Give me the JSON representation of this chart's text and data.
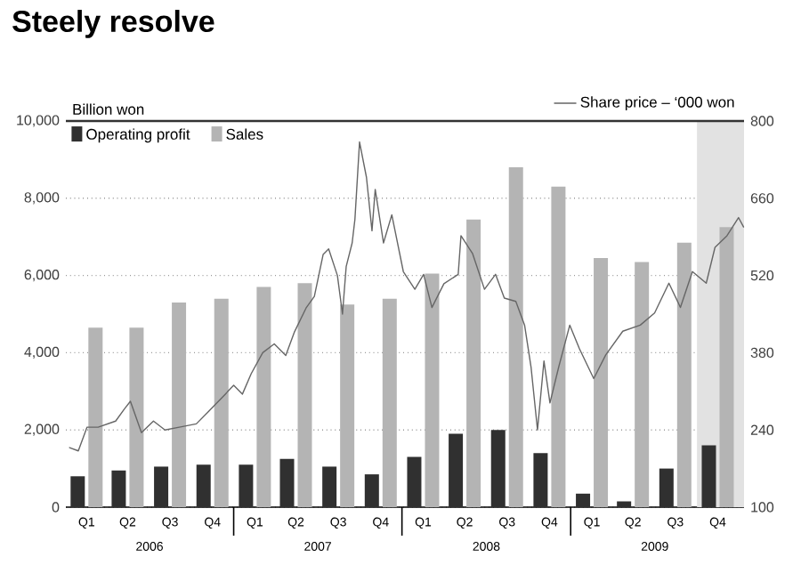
{
  "chart_data": {
    "type": "bar",
    "title": "Steely resolve",
    "ylabel": "Billion won",
    "x": [
      "2006-02-15",
      "2006-05-15",
      "2006-08-15",
      "2006-11-15",
      "2007-02-15",
      "2007-05-15",
      "2007-08-15",
      "2007-11-15",
      "2008-02-15",
      "2008-05-15",
      "2008-08-15",
      "2008-11-15",
      "2009-02-15",
      "2009-05-15",
      "2009-08-15",
      "2009-11-15"
    ],
    "series": [
      {
        "name": "Operating profit",
        "color": "#303030",
        "values": [
          800,
          950,
          1050,
          1100,
          1100,
          1250,
          1050,
          850,
          1300,
          1900,
          2000,
          1400,
          350,
          150,
          1000,
          1600
        ]
      },
      {
        "name": "Sales",
        "color": "#b4b4b4",
        "values": [
          4650,
          4650,
          5300,
          5400,
          5700,
          5800,
          5250,
          5400,
          6050,
          7450,
          8800,
          8300,
          6450,
          6350,
          6850,
          7250
        ]
      },
      {
        "name": "Share price – ‘000 won",
        "type": "line",
        "axis": "y2",
        "color": "#666666",
        "x": [
          "2006-01-09",
          "2006-01-28",
          "2006-02-16",
          "2006-03-12",
          "2006-04-19",
          "2006-05-08",
          "2006-05-21",
          "2006-06-14",
          "2006-07-10",
          "2006-08-04",
          "2006-09-04",
          "2006-10-11",
          "2006-11-05",
          "2006-12-13",
          "2006-12-31",
          "2007-01-19",
          "2007-02-07",
          "2007-03-04",
          "2007-03-29",
          "2007-04-23",
          "2007-05-12",
          "2007-06-06",
          "2007-06-24",
          "2007-07-13",
          "2007-07-25",
          "2007-08-13",
          "2007-08-24",
          "2007-09-01",
          "2007-09-14",
          "2007-09-20",
          "2007-09-30",
          "2007-10-15",
          "2007-10-27",
          "2007-11-03",
          "2007-11-21",
          "2007-12-09",
          "2008-01-03",
          "2008-01-28",
          "2008-02-16",
          "2008-03-05",
          "2008-03-31",
          "2008-05-01",
          "2008-05-07",
          "2008-06-01",
          "2008-06-27",
          "2008-07-21",
          "2008-08-09",
          "2008-09-03",
          "2008-09-22",
          "2008-10-06",
          "2008-10-20",
          "2008-11-03",
          "2008-11-16",
          "2008-12-05",
          "2008-12-29",
          "2009-01-19",
          "2009-02-19",
          "2009-03-17",
          "2009-04-23",
          "2009-05-31",
          "2009-07-01",
          "2009-08-01",
          "2009-08-26",
          "2009-09-21",
          "2009-10-21",
          "2009-11-09",
          "2009-12-05",
          "2009-12-30",
          "2010-01-10"
        ],
        "values": [
          208,
          202,
          245,
          245,
          256,
          278,
          292,
          235,
          256,
          240,
          245,
          251,
          272,
          305,
          321,
          305,
          342,
          380,
          396,
          375,
          418,
          461,
          482,
          558,
          568,
          520,
          450,
          536,
          579,
          622,
          762,
          698,
          601,
          676,
          579,
          630,
          527,
          495,
          522,
          462,
          505,
          522,
          592,
          560,
          495,
          522,
          479,
          473,
          430,
          354,
          240,
          365,
          289,
          354,
          430,
          387,
          333,
          376,
          419,
          430,
          452,
          506,
          462,
          527,
          506,
          571,
          592,
          625,
          608
        ]
      }
    ],
    "xlim": [
      "2006-01-01",
      "2010-01-11"
    ],
    "xticks": [
      {
        "value": "2006-02-15",
        "label": "Q1"
      },
      {
        "value": "2006-05-15",
        "label": "Q2"
      },
      {
        "value": "2006-08-15",
        "label": "Q3"
      },
      {
        "value": "2006-11-15",
        "label": "Q4"
      },
      {
        "value": "2007-02-15",
        "label": "Q1"
      },
      {
        "value": "2007-05-15",
        "label": "Q2"
      },
      {
        "value": "2007-08-15",
        "label": "Q3"
      },
      {
        "value": "2007-11-15",
        "label": "Q4"
      },
      {
        "value": "2008-02-15",
        "label": "Q1"
      },
      {
        "value": "2008-05-15",
        "label": "Q2"
      },
      {
        "value": "2008-08-15",
        "label": "Q3"
      },
      {
        "value": "2008-11-15",
        "label": "Q4"
      },
      {
        "value": "2009-02-15",
        "label": "Q1"
      },
      {
        "value": "2009-05-15",
        "label": "Q2"
      },
      {
        "value": "2009-08-15",
        "label": "Q3"
      },
      {
        "value": "2009-11-15",
        "label": "Q4"
      }
    ],
    "annotations": [
      "2006",
      "2007",
      "2008",
      "2009"
    ],
    "ylim": [
      0,
      10000
    ],
    "yticks": [
      0,
      {
        "value": 2000,
        "label": "2,000"
      },
      {
        "value": 4000,
        "label": "4,000"
      },
      {
        "value": 6000,
        "label": "6,000"
      },
      {
        "value": 8000,
        "label": "8,000"
      },
      {
        "value": 10000,
        "label": "10,000"
      }
    ],
    "y2lim": [
      100,
      800
    ],
    "y2ticks": [
      100,
      240,
      380,
      520,
      660,
      800
    ],
    "bands": [
      {
        "axis": "x",
        "from": "2009-10-01",
        "to": "2010-01-11",
        "color": "#e2e2e2"
      }
    ],
    "grid": "y",
    "legend": "top"
  }
}
